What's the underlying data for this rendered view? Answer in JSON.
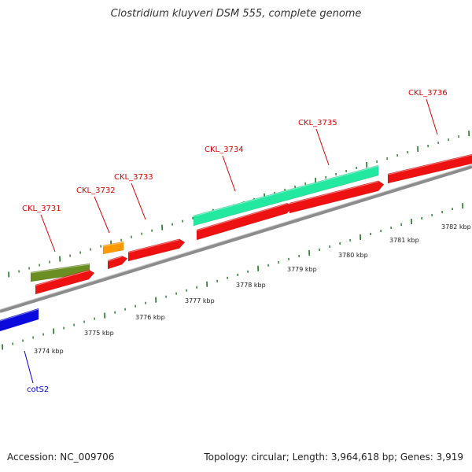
{
  "title": "Clostridium kluyveri DSM 555, complete genome",
  "footer": {
    "accession": "Accession: NC_009706",
    "summary": "Topology: circular; Length: 3,964,618 bp; Genes: 3,919"
  },
  "colors": {
    "backbone": "#8c8c8c",
    "tick": "#1e7a1e",
    "gene_label_forward": "#dd0000",
    "gene_label_reverse": "#0000cc",
    "cds": "#ee1111",
    "gene_forward": "#ee1111",
    "gene_green": "#22e8a0",
    "gene_olive": "#6b8e23",
    "gene_orange": "#ff9900",
    "gene_blue": "#0a0adc"
  },
  "scale_labels": [
    "3774 kbp",
    "3775 kbp",
    "3776 kbp",
    "3777 kbp",
    "3778 kbp",
    "3779 kbp",
    "3780 kbp",
    "3781 kbp",
    "3782 kbp"
  ],
  "gene_labels": [
    {
      "text": "CKL_3731",
      "color": "red"
    },
    {
      "text": "CKL_3732",
      "color": "red"
    },
    {
      "text": "CKL_3733",
      "color": "red"
    },
    {
      "text": "CKL_3734",
      "color": "red"
    },
    {
      "text": "CKL_3735",
      "color": "red"
    },
    {
      "text": "CKL_3736",
      "color": "red"
    },
    {
      "text": "cotS2",
      "color": "blue"
    }
  ]
}
